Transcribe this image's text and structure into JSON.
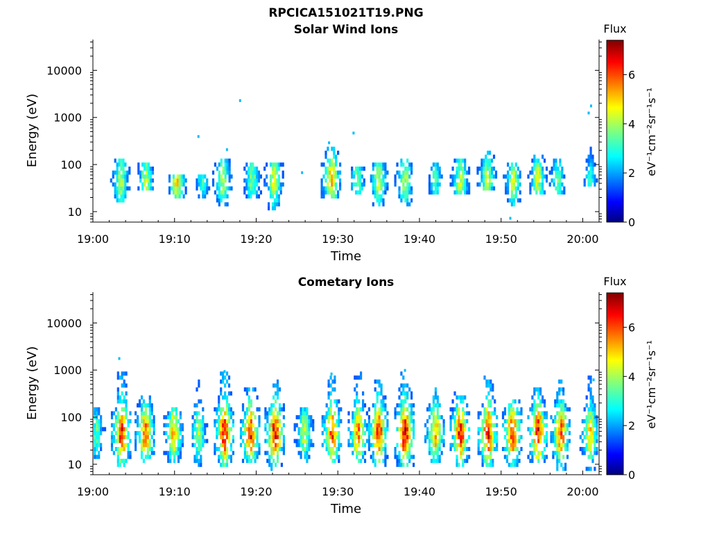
{
  "figure_title": "RPCICA151021T19.PNG",
  "chart_data": [
    {
      "type": "heatmap",
      "title": "Solar Wind Ions",
      "xlabel": "Time",
      "ylabel": "Energy (eV)",
      "x_tick_labels": [
        "19:00",
        "19:10",
        "19:20",
        "19:30",
        "19:40",
        "19:50",
        "20:00"
      ],
      "x_tick_minutes": [
        0,
        10,
        20,
        30,
        40,
        50,
        60
      ],
      "xlim_minutes": [
        0,
        62
      ],
      "y_scale": "log",
      "y_tick_labels": [
        "10",
        "100",
        "1000",
        "10000"
      ],
      "y_tick_values": [
        10,
        100,
        1000,
        10000
      ],
      "ylim": [
        6,
        45000
      ],
      "colorbar": {
        "label": "Flux",
        "unit_label": "eV⁻¹cm⁻²sr⁻¹s⁻¹",
        "tick_labels": [
          "0",
          "2",
          "4",
          "6"
        ],
        "tick_values": [
          0,
          2,
          4,
          6
        ],
        "range": [
          0,
          7.4
        ]
      },
      "bursts": [
        {
          "t": 3.3,
          "peak": 4.3,
          "lo": 18,
          "hi": 90
        },
        {
          "t": 6.4,
          "peak": 4.3,
          "lo": 30,
          "hi": 80
        },
        {
          "t": 10.2,
          "peak": 5.0,
          "lo": 20,
          "hi": 45
        },
        {
          "t": 13.3,
          "peak": 3.2,
          "lo": 20,
          "hi": 40
        },
        {
          "t": 15.8,
          "peak": 4.2,
          "lo": 15,
          "hi": 90
        },
        {
          "t": 19.4,
          "peak": 4.0,
          "lo": 20,
          "hi": 80
        },
        {
          "t": 22.1,
          "peak": 4.6,
          "lo": 12,
          "hi": 80
        },
        {
          "t": 29.1,
          "peak": 5.4,
          "lo": 20,
          "hi": 180
        },
        {
          "t": 32.3,
          "peak": 3.8,
          "lo": 25,
          "hi": 60
        },
        {
          "t": 34.9,
          "peak": 4.4,
          "lo": 15,
          "hi": 80
        },
        {
          "t": 38.1,
          "peak": 4.4,
          "lo": 15,
          "hi": 90
        },
        {
          "t": 41.8,
          "peak": 3.4,
          "lo": 25,
          "hi": 70
        },
        {
          "t": 44.9,
          "peak": 4.4,
          "lo": 25,
          "hi": 85
        },
        {
          "t": 48.2,
          "peak": 4.4,
          "lo": 30,
          "hi": 140
        },
        {
          "t": 51.4,
          "peak": 4.4,
          "lo": 15,
          "hi": 80
        },
        {
          "t": 54.4,
          "peak": 4.4,
          "lo": 25,
          "hi": 120
        },
        {
          "t": 56.8,
          "peak": 3.6,
          "lo": 25,
          "hi": 90
        },
        {
          "t": 60.8,
          "peak": 3.0,
          "lo": 40,
          "hi": 160
        }
      ],
      "isolated_points": [
        {
          "t": 12.8,
          "e": 380
        },
        {
          "t": 16.3,
          "e": 200
        },
        {
          "t": 17.9,
          "e": 2200
        },
        {
          "t": 31.8,
          "e": 450
        },
        {
          "t": 25.5,
          "e": 65
        },
        {
          "t": 60.6,
          "e": 1200
        },
        {
          "t": 60.9,
          "e": 1700
        },
        {
          "t": 51.0,
          "e": 7
        },
        {
          "t": 28.8,
          "e": 280
        }
      ]
    },
    {
      "type": "heatmap",
      "title": "Cometary Ions",
      "xlabel": "Time",
      "ylabel": "Energy (eV)",
      "x_tick_labels": [
        "19:00",
        "19:10",
        "19:20",
        "19:30",
        "19:40",
        "19:50",
        "20:00"
      ],
      "x_tick_minutes": [
        0,
        10,
        20,
        30,
        40,
        50,
        60
      ],
      "xlim_minutes": [
        0,
        62
      ],
      "y_scale": "log",
      "y_tick_labels": [
        "10",
        "100",
        "1000",
        "10000"
      ],
      "y_tick_values": [
        10,
        100,
        1000,
        10000
      ],
      "ylim": [
        6,
        45000
      ],
      "colorbar": {
        "label": "Flux",
        "unit_label": "eV⁻¹cm⁻²sr⁻¹s⁻¹",
        "tick_labels": [
          "0",
          "2",
          "4",
          "6"
        ],
        "tick_values": [
          0,
          2,
          4,
          6
        ],
        "range": [
          0,
          7.4
        ]
      },
      "bursts": [
        {
          "t": 0.3,
          "peak": 3.6,
          "lo": 15,
          "hi": 120
        },
        {
          "t": 3.4,
          "peak": 6.7,
          "lo": 10,
          "hi": 600
        },
        {
          "t": 6.3,
          "peak": 6.0,
          "lo": 12,
          "hi": 200
        },
        {
          "t": 9.8,
          "peak": 5.4,
          "lo": 12,
          "hi": 120
        },
        {
          "t": 12.8,
          "peak": 4.2,
          "lo": 10,
          "hi": 500
        },
        {
          "t": 16.0,
          "peak": 7.0,
          "lo": 10,
          "hi": 700
        },
        {
          "t": 19.2,
          "peak": 6.6,
          "lo": 12,
          "hi": 300
        },
        {
          "t": 22.2,
          "peak": 6.8,
          "lo": 8,
          "hi": 450
        },
        {
          "t": 25.8,
          "peak": 4.4,
          "lo": 12,
          "hi": 120
        },
        {
          "t": 29.2,
          "peak": 6.3,
          "lo": 10,
          "hi": 500
        },
        {
          "t": 32.4,
          "peak": 5.8,
          "lo": 12,
          "hi": 600
        },
        {
          "t": 34.9,
          "peak": 6.6,
          "lo": 10,
          "hi": 400
        },
        {
          "t": 38.1,
          "peak": 7.2,
          "lo": 10,
          "hi": 600
        },
        {
          "t": 41.8,
          "peak": 5.6,
          "lo": 12,
          "hi": 300
        },
        {
          "t": 44.9,
          "peak": 6.6,
          "lo": 10,
          "hi": 250
        },
        {
          "t": 48.3,
          "peak": 6.9,
          "lo": 10,
          "hi": 500
        },
        {
          "t": 51.3,
          "peak": 6.5,
          "lo": 10,
          "hi": 160
        },
        {
          "t": 54.4,
          "peak": 6.9,
          "lo": 12,
          "hi": 280
        },
        {
          "t": 57.2,
          "peak": 6.2,
          "lo": 8,
          "hi": 400
        },
        {
          "t": 60.8,
          "peak": 5.2,
          "lo": 8,
          "hi": 500
        }
      ],
      "isolated_points": [
        {
          "t": 3.1,
          "e": 1700
        },
        {
          "t": 16.0,
          "e": 900
        },
        {
          "t": 38.1,
          "e": 950
        },
        {
          "t": 29.1,
          "e": 800
        },
        {
          "t": 61.2,
          "e": 600
        }
      ]
    }
  ]
}
